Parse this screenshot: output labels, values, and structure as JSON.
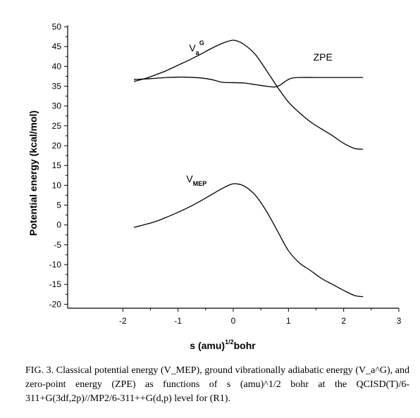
{
  "chart_data": {
    "type": "line",
    "title": "",
    "xlabel_main": "s (amu)",
    "xlabel_sup": "1/2",
    "xlabel_tail": "bohr",
    "ylabel": "Potential energy (kcal/mol)",
    "xlim": [
      -3,
      3
    ],
    "ylim": [
      -21,
      50
    ],
    "xticks": [
      -2,
      -1,
      0,
      1,
      2,
      3
    ],
    "yticks": [
      -20,
      -15,
      -10,
      -5,
      0,
      5,
      10,
      15,
      20,
      25,
      30,
      35,
      40,
      45,
      50
    ],
    "grid": false,
    "series": [
      {
        "name": "Va^G",
        "label_base": "V",
        "label_sub": "a",
        "label_sup": "G",
        "label_pos": [
          -0.8,
          43.8
        ],
        "x": [
          -1.8,
          -1.6,
          -1.4,
          -1.2,
          -1.0,
          -0.8,
          -0.6,
          -0.4,
          -0.2,
          -0.05,
          0.05,
          0.2,
          0.4,
          0.6,
          0.8,
          1.0,
          1.2,
          1.4,
          1.6,
          1.8,
          2.0,
          2.2,
          2.35
        ],
        "values": [
          36.2,
          36.9,
          37.9,
          39.0,
          40.3,
          41.6,
          43.0,
          44.5,
          45.8,
          46.5,
          46.5,
          45.5,
          43.0,
          39.0,
          34.8,
          31.0,
          28.3,
          26.0,
          24.2,
          22.5,
          20.6,
          19.3,
          19.1
        ]
      },
      {
        "name": "ZPE",
        "label_base": "ZPE",
        "label_pos": [
          1.45,
          41.5
        ],
        "x": [
          -1.8,
          -1.5,
          -1.2,
          -0.9,
          -0.6,
          -0.4,
          -0.2,
          0.0,
          0.2,
          0.4,
          0.6,
          0.75,
          0.85,
          0.95,
          1.05,
          1.2,
          1.5,
          1.8,
          2.1,
          2.35
        ],
        "values": [
          36.7,
          36.9,
          37.2,
          37.3,
          37.1,
          36.7,
          36.0,
          35.9,
          35.8,
          35.4,
          35.0,
          34.8,
          35.3,
          36.3,
          37.0,
          37.2,
          37.2,
          37.2,
          37.2,
          37.2
        ]
      },
      {
        "name": "VMEP",
        "label_base": "V",
        "label_sub": "MEP",
        "label_pos": [
          -0.85,
          10.8
        ],
        "x": [
          -1.8,
          -1.6,
          -1.4,
          -1.2,
          -1.0,
          -0.8,
          -0.6,
          -0.4,
          -0.2,
          -0.05,
          0.05,
          0.2,
          0.4,
          0.6,
          0.8,
          1.0,
          1.2,
          1.4,
          1.6,
          1.8,
          2.0,
          2.2,
          2.35
        ],
        "values": [
          -0.6,
          0.1,
          0.9,
          2.0,
          3.2,
          4.5,
          6.0,
          7.6,
          9.2,
          10.2,
          10.4,
          9.8,
          7.5,
          3.5,
          -1.5,
          -6.5,
          -9.6,
          -11.5,
          -13.5,
          -15.0,
          -16.5,
          -17.8,
          -18.1
        ]
      }
    ]
  },
  "caption": {
    "lead": "FIG. 3.",
    "text": "Classical potential energy (V_MEP), ground vibrationally adiabatic energy (V_a^G), and zero-point energy (ZPE) as functions of s (amu)^1/2 bohr at the QCISD(T)/6-311+G(3df,2p)//MP2/6-311++G(d,p) level for (R1)."
  }
}
